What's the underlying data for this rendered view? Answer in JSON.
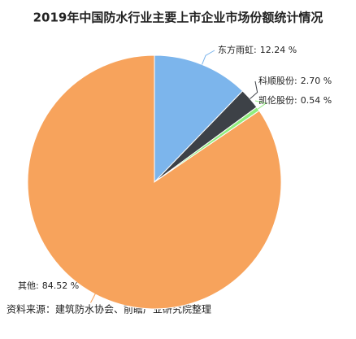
{
  "chart_data": {
    "type": "pie",
    "title": "2019年中国防水行业主要上市企业市场份额统计情况",
    "categories": [
      "东方雨虹:",
      "科顺股份:",
      "凯伦股份:",
      "其他:"
    ],
    "values": [
      12.24,
      2.7,
      0.54,
      84.52
    ],
    "value_labels": [
      "12.24 %",
      "2.70 %",
      "0.54 %",
      "84.52 %"
    ],
    "colors": [
      "#7cb5ec",
      "#3d4147",
      "#90ed7d",
      "#f7a35c"
    ],
    "source": "资料来源：建筑防水协会、前瞻产业研究院整理"
  }
}
